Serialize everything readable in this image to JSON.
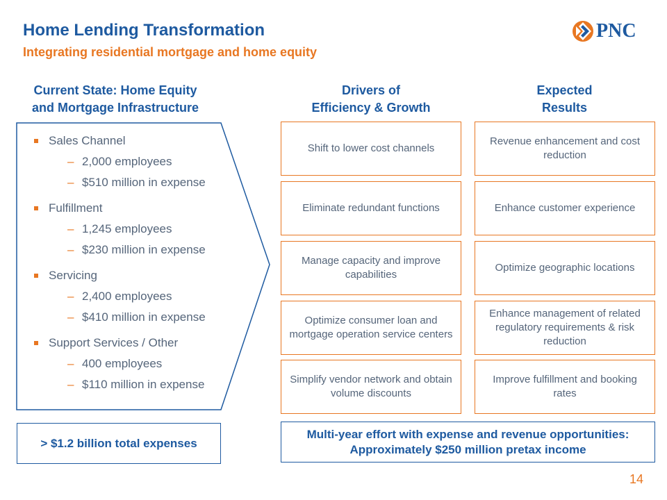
{
  "header": {
    "title": "Home Lending Transformation",
    "subtitle": "Integrating residential mortgage and home equity",
    "logo_text": "PNC"
  },
  "columns": {
    "current_state": [
      "Current State: Home Equity",
      "and Mortgage Infrastructure"
    ],
    "drivers": [
      "Drivers of",
      "Efficiency & Growth"
    ],
    "results": [
      "Expected",
      "Results"
    ]
  },
  "current_state": [
    {
      "label": "Sales Channel",
      "details": [
        "2,000 employees",
        "$510 million in expense"
      ]
    },
    {
      "label": "Fulfillment",
      "details": [
        "1,245 employees",
        "$230 million in expense"
      ]
    },
    {
      "label": "Servicing",
      "details": [
        "2,400 employees",
        "$410 million in expense"
      ]
    },
    {
      "label": "Support Services / Other",
      "details": [
        "400 employees",
        "$110 million in expense"
      ]
    }
  ],
  "dash": "–",
  "drivers": [
    "Shift to lower cost channels",
    "Eliminate redundant functions",
    "Manage capacity and improve capabilities",
    "Optimize consumer loan and mortgage operation service centers",
    "Simplify vendor network and obtain volume discounts"
  ],
  "results": [
    "Revenue enhancement and cost reduction",
    "Enhance customer experience",
    "Optimize geographic locations",
    "Enhance management of related regulatory requirements & risk reduction",
    "Improve fulfillment and booking rates"
  ],
  "footer": {
    "total": "> $1.2 billion total expenses",
    "multi_line1": "Multi-year effort with expense and revenue opportunities:",
    "multi_line2": "Approximately $250 million pretax income",
    "page_number": "14"
  },
  "colors": {
    "blue": "#1e5aa0",
    "orange": "#e87722",
    "text": "#55657a"
  }
}
